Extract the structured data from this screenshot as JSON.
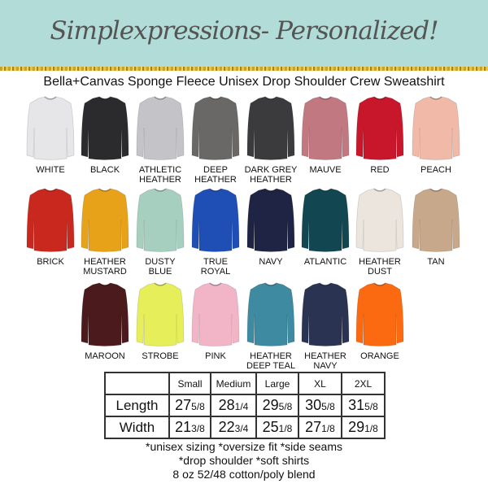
{
  "header": {
    "title": "Simplexpressions- Personalized!",
    "subtitle": "Bella+Canvas Sponge Fleece Unisex Drop Shoulder Crew Sweatshirt"
  },
  "colors": [
    {
      "label": "WHITE",
      "hex": "#e6e6e8"
    },
    {
      "label": "BLACK",
      "hex": "#2b2a2c"
    },
    {
      "label": "ATHLETIC HEATHER",
      "hex": "#c3c3c8"
    },
    {
      "label": "DEEP HEATHER",
      "hex": "#6a6866"
    },
    {
      "label": "DARK GREY HEATHER",
      "hex": "#3b3b3d"
    },
    {
      "label": "MAUVE",
      "hex": "#c27880"
    },
    {
      "label": "RED",
      "hex": "#c8162a"
    },
    {
      "label": "PEACH",
      "hex": "#f1b9a8"
    },
    {
      "label": "BRICK",
      "hex": "#c9281e"
    },
    {
      "label": "HEATHER MUSTARD",
      "hex": "#e8a21a"
    },
    {
      "label": "DUSTY BLUE",
      "hex": "#a7cfc0"
    },
    {
      "label": "TRUE ROYAL",
      "hex": "#1f4fb5"
    },
    {
      "label": "NAVY",
      "hex": "#1f2444"
    },
    {
      "label": "ATLANTIC",
      "hex": "#124752"
    },
    {
      "label": "HEATHER DUST",
      "hex": "#ece5dd"
    },
    {
      "label": "TAN",
      "hex": "#c8a88a"
    },
    {
      "label": "MAROON",
      "hex": "#4a1a1c"
    },
    {
      "label": "STROBE",
      "hex": "#e6ef5a"
    },
    {
      "label": "PINK",
      "hex": "#f2b5c8"
    },
    {
      "label": "HEATHER DEEP TEAL",
      "hex": "#3e8aa0"
    },
    {
      "label": "HEATHER NAVY",
      "hex": "#2a3352"
    },
    {
      "label": "ORANGE",
      "hex": "#fb6a10"
    }
  ],
  "size_table": {
    "headers": [
      "",
      "Small",
      "Medium",
      "Large",
      "XL",
      "2XL"
    ],
    "rows": [
      {
        "label": "Length",
        "values": [
          [
            "27",
            "5/8"
          ],
          [
            "28",
            "1/4"
          ],
          [
            "29",
            "5/8"
          ],
          [
            "30",
            "5/8"
          ],
          [
            "31",
            "5/8"
          ]
        ]
      },
      {
        "label": "Width",
        "values": [
          [
            "21",
            "3/8"
          ],
          [
            "22",
            "3/4"
          ],
          [
            "25",
            "1/8"
          ],
          [
            "27",
            "1/8"
          ],
          [
            "29",
            "1/8"
          ]
        ]
      }
    ]
  },
  "notes": [
    "*unisex sizing *oversize fit *side seams",
    "*drop shoulder *soft shirts",
    "8 oz 52/48 cotton/poly blend"
  ]
}
